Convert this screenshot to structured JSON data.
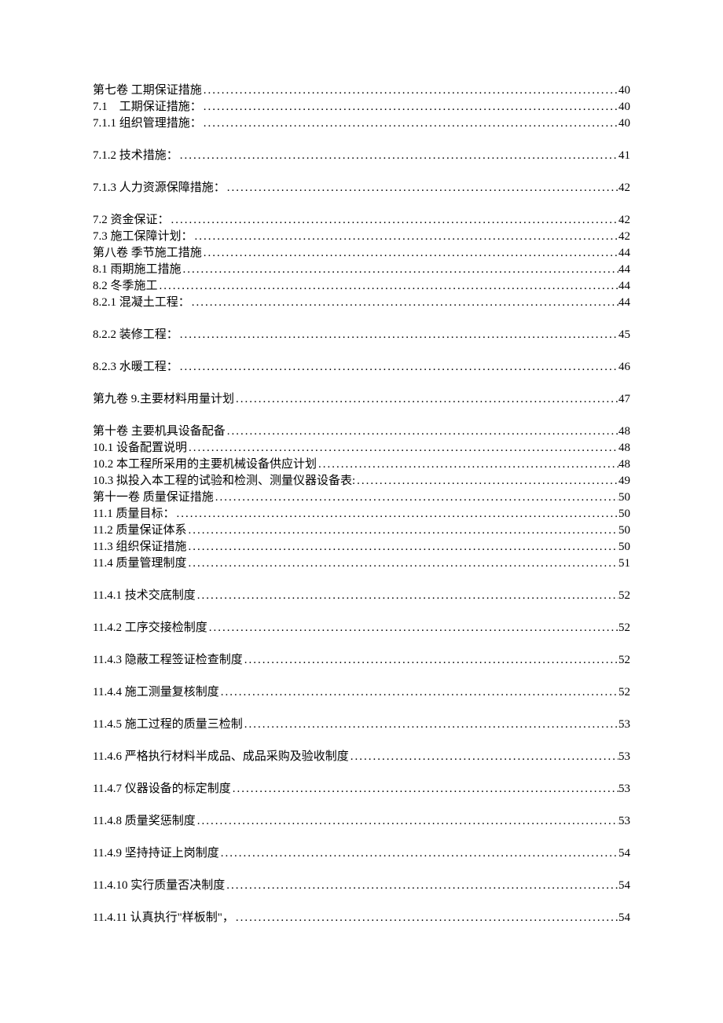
{
  "toc": {
    "text_color": "#000000",
    "background_color": "#ffffff",
    "font_size": 15,
    "entries": [
      {
        "label": "第七卷 工期保证措施 ",
        "page": "40",
        "spacing": "small"
      },
      {
        "label": "7.1　工期保证措施：",
        "page": "40",
        "spacing": "small"
      },
      {
        "label": "7.1.1 组织管理措施：",
        "page": "40",
        "spacing": "large"
      },
      {
        "label": "7.1.2 技术措施：",
        "page": "41",
        "spacing": "large"
      },
      {
        "label": "7.1.3 人力资源保障措施：",
        "page": "42",
        "spacing": "large"
      },
      {
        "label": "7.2 资金保证：",
        "page": "42",
        "spacing": "small"
      },
      {
        "label": "7.3 施工保障计划：",
        "page": "42",
        "spacing": "small"
      },
      {
        "label": "第八卷 季节施工措施 ",
        "page": "44",
        "spacing": "small"
      },
      {
        "label": "8.1 雨期施工措施",
        "page": "44",
        "spacing": "small"
      },
      {
        "label": "8.2 冬季施工",
        "page": "44",
        "spacing": "small"
      },
      {
        "label": "8.2.1 混凝土工程：",
        "page": "44",
        "spacing": "large"
      },
      {
        "label": "8.2.2 装修工程：",
        "page": "45",
        "spacing": "large"
      },
      {
        "label": "8.2.3 水暖工程：",
        "page": "46",
        "spacing": "large"
      },
      {
        "label": "第九卷 9.主要材料用量计划 ",
        "page": "47",
        "spacing": "large"
      },
      {
        "label": "第十卷 主要机具设备配备 ",
        "page": "48",
        "spacing": "small"
      },
      {
        "label": "10.1 设备配置说明",
        "page": "48",
        "spacing": "small"
      },
      {
        "label": "10.2 本工程所采用的主要机械设备供应计划",
        "page": "48",
        "spacing": "small"
      },
      {
        "label": "10.3 拟投入本工程的试验和检测、测量仪器设备表:",
        "page": "49",
        "spacing": "small"
      },
      {
        "label": "第十一卷 质量保证措施 ",
        "page": "50",
        "spacing": "small"
      },
      {
        "label": "11.1 质量目标：",
        "page": "50",
        "spacing": "small"
      },
      {
        "label": "11.2 质量保证体系",
        "page": "50",
        "spacing": "small"
      },
      {
        "label": "11.3 组织保证措施",
        "page": "50",
        "spacing": "small"
      },
      {
        "label": "11.4 质量管理制度",
        "page": "51",
        "spacing": "large"
      },
      {
        "label": "11.4.1 技术交底制度",
        "page": "52",
        "spacing": "large"
      },
      {
        "label": "11.4.2 工序交接检制度",
        "page": "52",
        "spacing": "large"
      },
      {
        "label": "11.4.3 隐蔽工程签证检查制度",
        "page": "52",
        "spacing": "large"
      },
      {
        "label": "11.4.4 施工测量复核制度",
        "page": "52",
        "spacing": "large"
      },
      {
        "label": "11.4.5 施工过程的质量三检制",
        "page": "53",
        "spacing": "large"
      },
      {
        "label": "11.4.6 严格执行材料半成品、成品采购及验收制度",
        "page": "53",
        "spacing": "large"
      },
      {
        "label": "11.4.7 仪器设备的标定制度",
        "page": "53",
        "spacing": "large"
      },
      {
        "label": "11.4.8 质量奖惩制度",
        "page": "53",
        "spacing": "large"
      },
      {
        "label": "11.4.9 坚持持证上岗制度",
        "page": "54",
        "spacing": "large"
      },
      {
        "label": "11.4.10 实行质量否决制度",
        "page": "54",
        "spacing": "large"
      },
      {
        "label": "11.4.11 认真执行\"样板制\"，",
        "page": "54",
        "spacing": "large"
      }
    ]
  }
}
